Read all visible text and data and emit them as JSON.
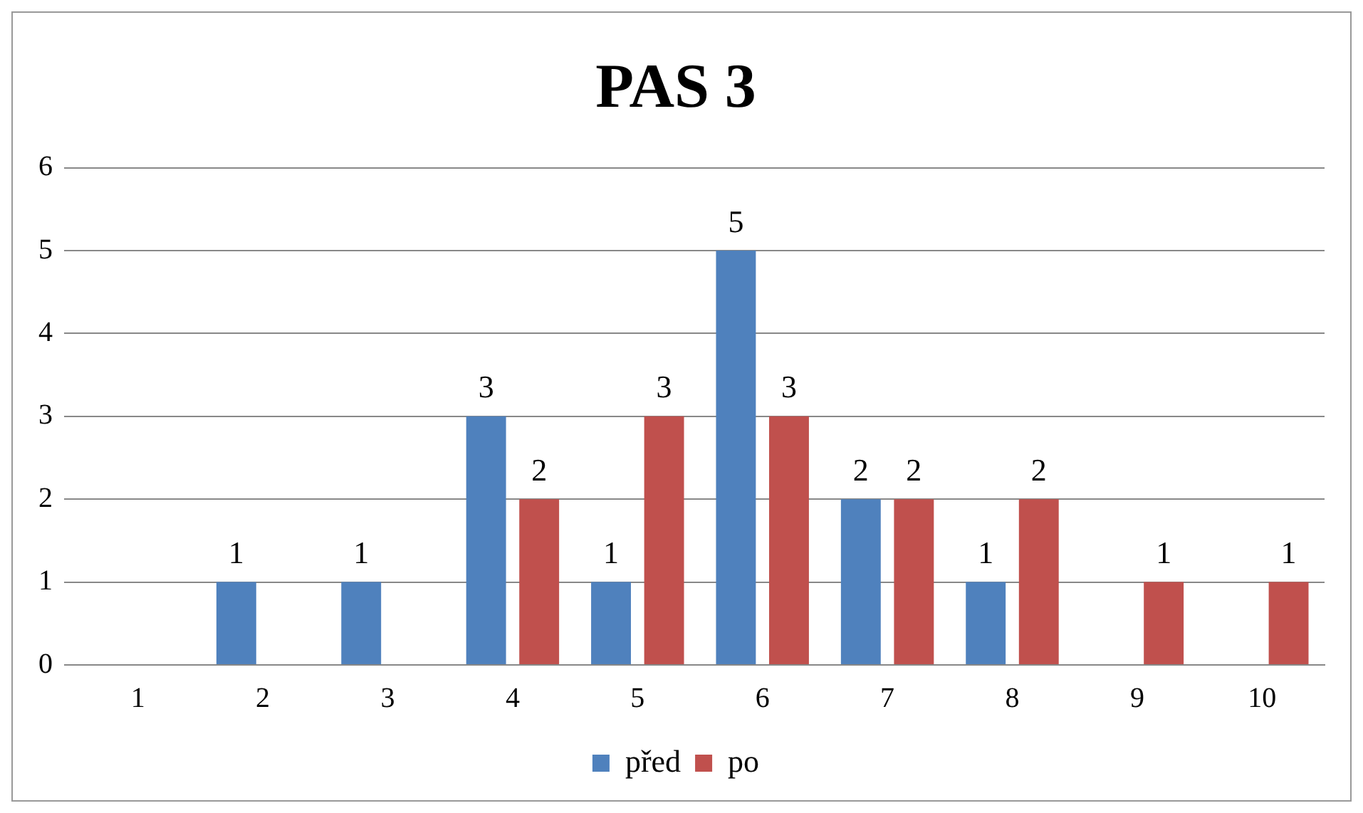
{
  "chart_data": {
    "type": "bar",
    "title": "PAS 3",
    "categories": [
      "1",
      "2",
      "3",
      "4",
      "5",
      "6",
      "7",
      "8",
      "9",
      "10"
    ],
    "series": [
      {
        "name": "před",
        "color": "#4f81bd",
        "values": [
          0,
          1,
          1,
          3,
          1,
          5,
          2,
          1,
          0,
          0
        ],
        "value_labels": [
          null,
          "1",
          "1",
          "3",
          "1",
          "5",
          "2",
          "1",
          null,
          null
        ]
      },
      {
        "name": "po",
        "color": "#c0504d",
        "values": [
          0,
          0,
          0,
          2,
          3,
          3,
          2,
          2,
          1,
          1
        ],
        "value_labels": [
          null,
          null,
          null,
          "2",
          "3",
          "3",
          "2",
          "2",
          "1",
          "1"
        ]
      }
    ],
    "ylim": [
      0,
      6
    ],
    "yticks": [
      0,
      1,
      2,
      3,
      4,
      5,
      6
    ],
    "grid": "y",
    "legend": "bottom"
  }
}
